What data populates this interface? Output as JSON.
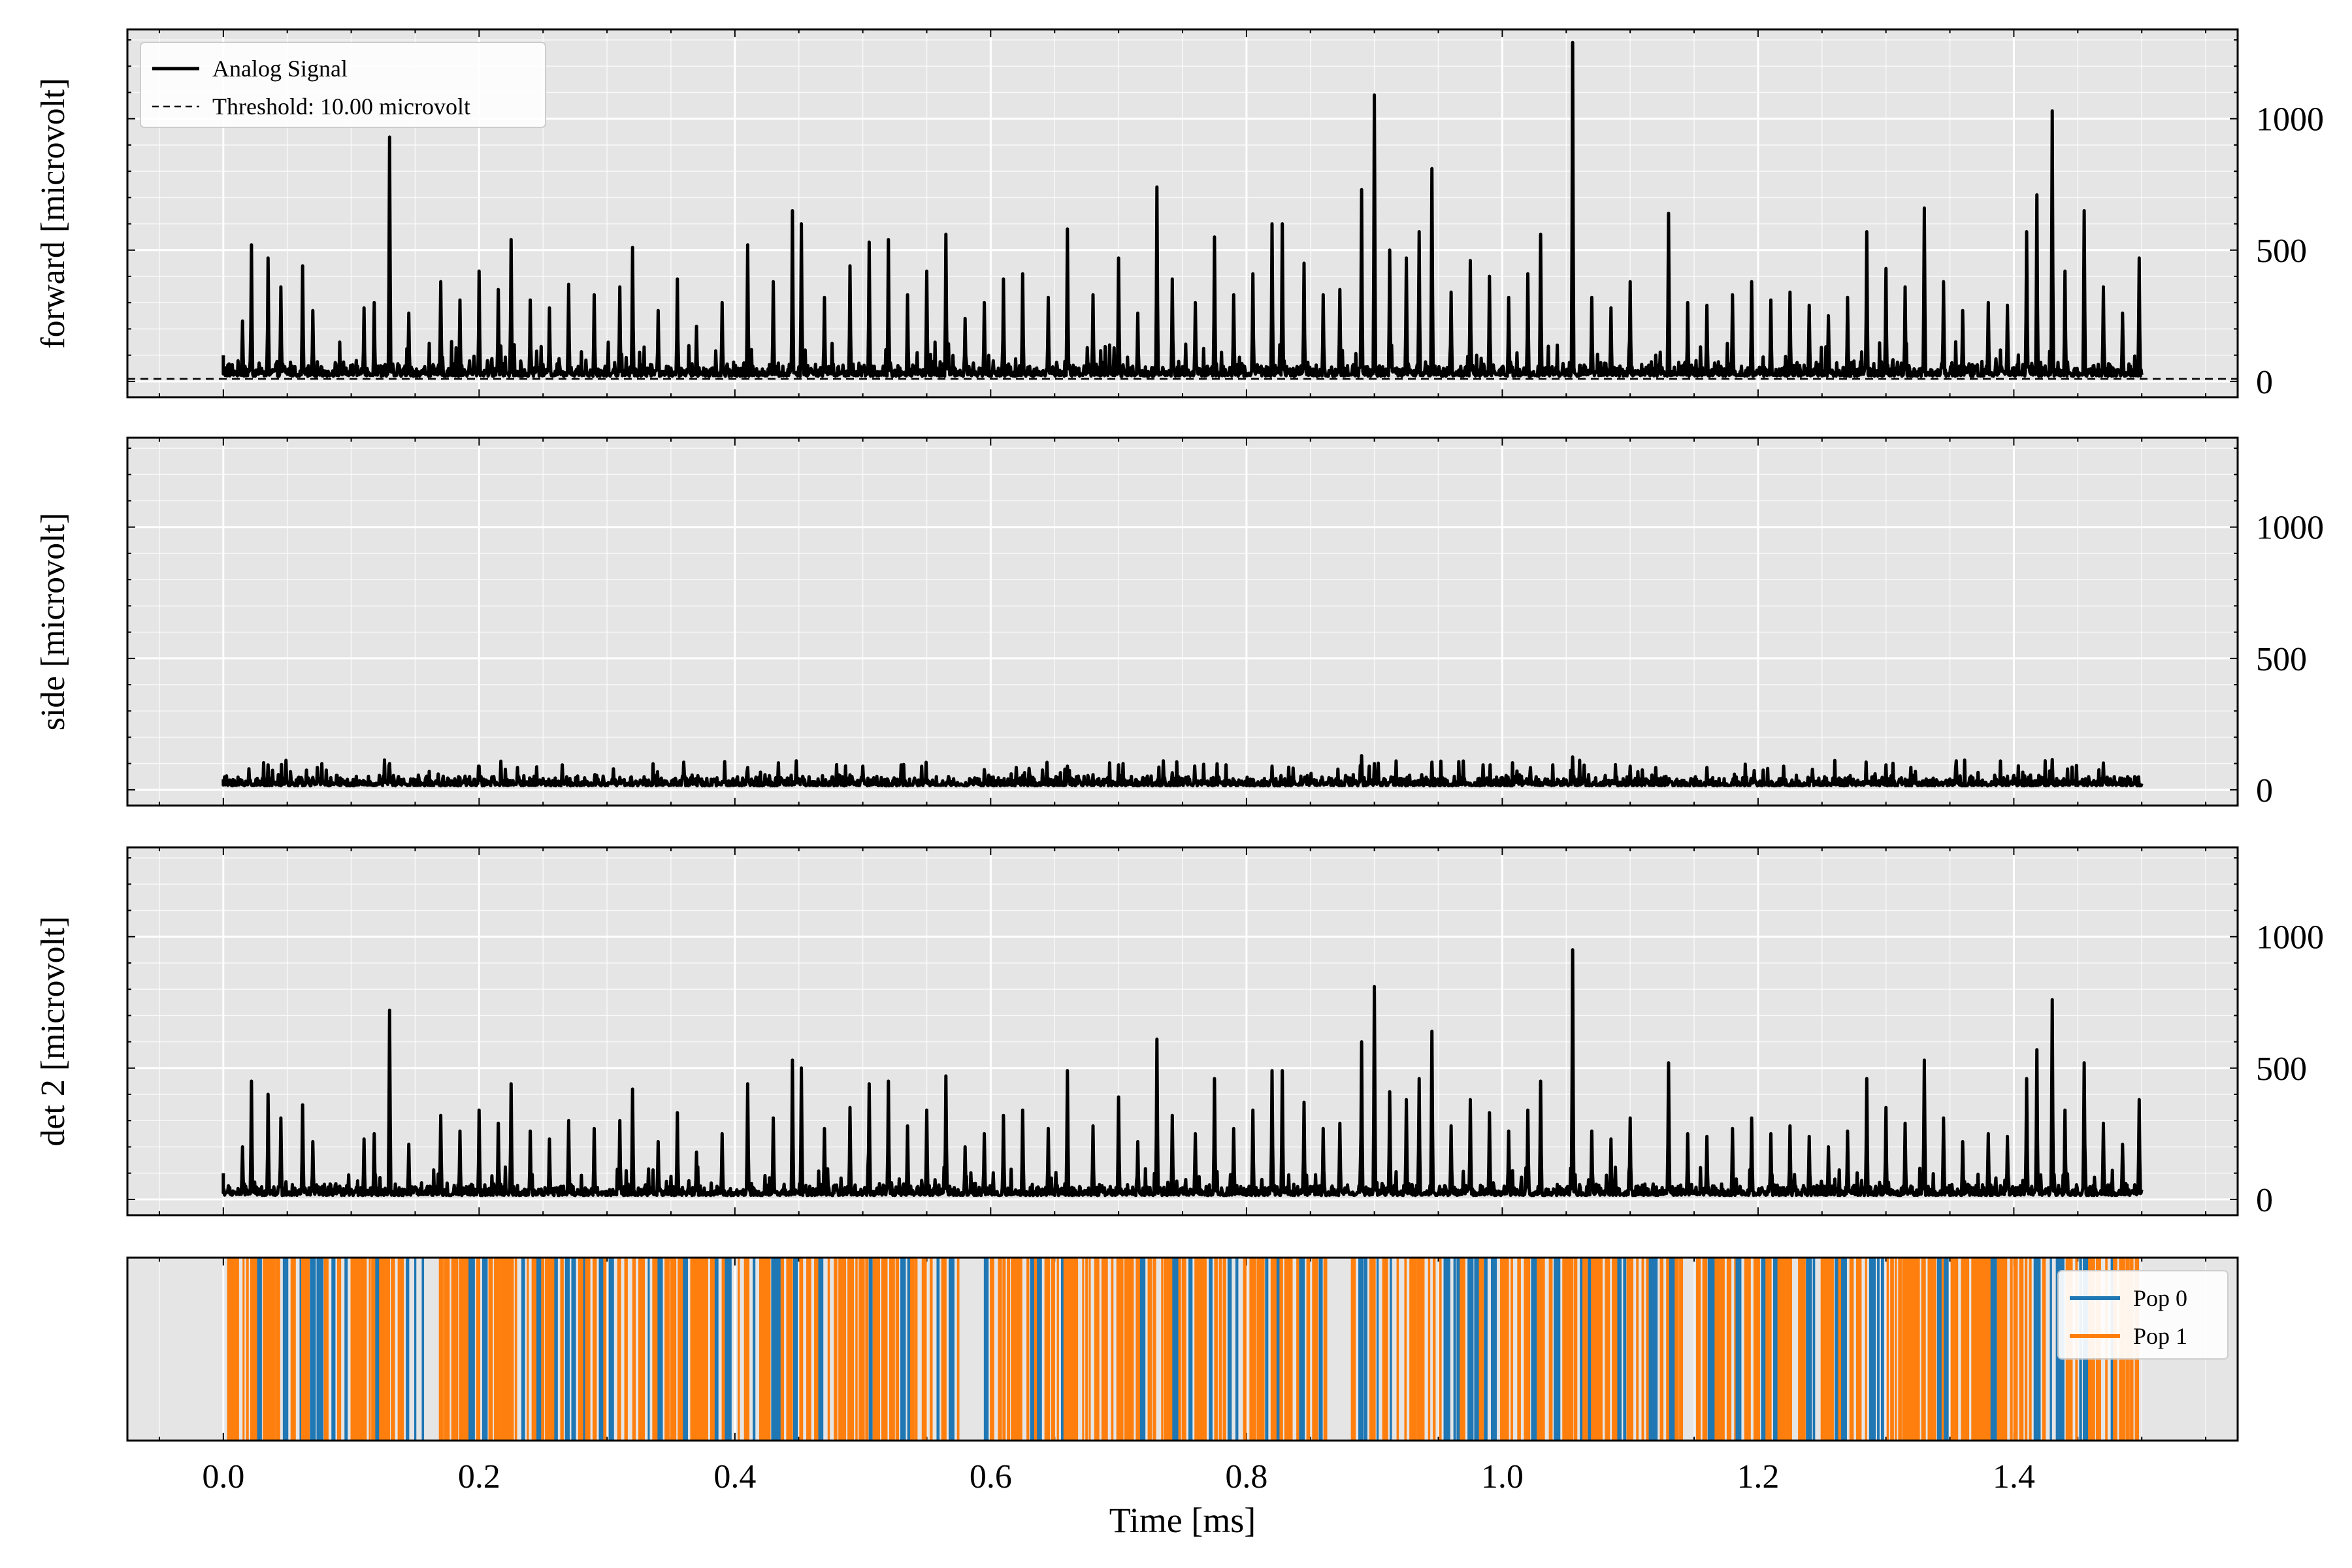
{
  "figure": {
    "xlabel": "Time [ms]",
    "x_ticks": [
      0.0,
      0.2,
      0.4,
      0.6,
      0.8,
      1.0,
      1.2,
      1.4
    ],
    "x_tick_labels": [
      "0.0",
      "0.2",
      "0.4",
      "0.6",
      "0.8",
      "1.0",
      "1.2",
      "1.4"
    ],
    "xlim": [
      -0.075,
      1.575
    ],
    "background_color": "#e5e5e5",
    "grid_color": "#ffffff",
    "signal_color": "#000000"
  },
  "chart_data": [
    {
      "type": "line",
      "panel": "forward",
      "ylabel": "forward [microvolt]",
      "ylim": [
        -60,
        1340
      ],
      "y_ticks": [
        0,
        500,
        1000
      ],
      "y_tick_labels": [
        "0",
        "500",
        "1000"
      ],
      "series": [
        {
          "name": "Analog Signal",
          "style": "solid",
          "color": "#000000"
        },
        {
          "name": "Threshold: 10.00 microvolt",
          "style": "dashed",
          "color": "#000000",
          "value": 10
        }
      ],
      "legend": {
        "placement": "upper-left",
        "entries": [
          "Analog Signal",
          "Threshold: 10.00 microvolt"
        ]
      },
      "baseline": 20,
      "noise_amplitude": 60,
      "peaks": [
        [
          0.015,
          230
        ],
        [
          0.022,
          520
        ],
        [
          0.035,
          470
        ],
        [
          0.045,
          360
        ],
        [
          0.062,
          440
        ],
        [
          0.07,
          270
        ],
        [
          0.11,
          280
        ],
        [
          0.118,
          300
        ],
        [
          0.13,
          930
        ],
        [
          0.145,
          260
        ],
        [
          0.17,
          380
        ],
        [
          0.185,
          310
        ],
        [
          0.2,
          420
        ],
        [
          0.215,
          350
        ],
        [
          0.225,
          540
        ],
        [
          0.24,
          310
        ],
        [
          0.255,
          280
        ],
        [
          0.27,
          370
        ],
        [
          0.29,
          330
        ],
        [
          0.31,
          360
        ],
        [
          0.32,
          510
        ],
        [
          0.34,
          270
        ],
        [
          0.355,
          390
        ],
        [
          0.37,
          210
        ],
        [
          0.39,
          300
        ],
        [
          0.41,
          520
        ],
        [
          0.43,
          380
        ],
        [
          0.445,
          650
        ],
        [
          0.452,
          600
        ],
        [
          0.47,
          320
        ],
        [
          0.49,
          440
        ],
        [
          0.505,
          530
        ],
        [
          0.52,
          540
        ],
        [
          0.535,
          330
        ],
        [
          0.55,
          420
        ],
        [
          0.565,
          560
        ],
        [
          0.58,
          240
        ],
        [
          0.595,
          300
        ],
        [
          0.61,
          390
        ],
        [
          0.625,
          410
        ],
        [
          0.645,
          320
        ],
        [
          0.66,
          580
        ],
        [
          0.68,
          330
        ],
        [
          0.7,
          470
        ],
        [
          0.715,
          260
        ],
        [
          0.73,
          740
        ],
        [
          0.742,
          390
        ],
        [
          0.76,
          300
        ],
        [
          0.775,
          550
        ],
        [
          0.79,
          330
        ],
        [
          0.805,
          410
        ],
        [
          0.82,
          600
        ],
        [
          0.828,
          600
        ],
        [
          0.845,
          450
        ],
        [
          0.86,
          330
        ],
        [
          0.873,
          350
        ],
        [
          0.89,
          730
        ],
        [
          0.9,
          1090
        ],
        [
          0.912,
          500
        ],
        [
          0.925,
          470
        ],
        [
          0.935,
          570
        ],
        [
          0.945,
          810
        ],
        [
          0.96,
          340
        ],
        [
          0.975,
          460
        ],
        [
          0.99,
          400
        ],
        [
          1.005,
          320
        ],
        [
          1.02,
          410
        ],
        [
          1.03,
          560
        ],
        [
          1.055,
          1290
        ],
        [
          1.07,
          320
        ],
        [
          1.085,
          280
        ],
        [
          1.1,
          380
        ],
        [
          1.13,
          640
        ],
        [
          1.145,
          300
        ],
        [
          1.16,
          290
        ],
        [
          1.18,
          330
        ],
        [
          1.195,
          380
        ],
        [
          1.21,
          310
        ],
        [
          1.225,
          340
        ],
        [
          1.24,
          290
        ],
        [
          1.255,
          250
        ],
        [
          1.27,
          320
        ],
        [
          1.285,
          570
        ],
        [
          1.3,
          430
        ],
        [
          1.315,
          360
        ],
        [
          1.33,
          660
        ],
        [
          1.345,
          380
        ],
        [
          1.36,
          270
        ],
        [
          1.38,
          300
        ],
        [
          1.395,
          290
        ],
        [
          1.41,
          570
        ],
        [
          1.418,
          710
        ],
        [
          1.43,
          1030
        ],
        [
          1.44,
          420
        ],
        [
          1.455,
          650
        ],
        [
          1.47,
          360
        ],
        [
          1.485,
          260
        ],
        [
          1.498,
          470
        ]
      ]
    },
    {
      "type": "line",
      "panel": "side",
      "ylabel": "side [microvolt]",
      "ylim": [
        -60,
        1340
      ],
      "y_ticks": [
        0,
        500,
        1000
      ],
      "y_tick_labels": [
        "0",
        "500",
        "1000"
      ],
      "series": [
        {
          "name": "",
          "style": "solid",
          "color": "#000000"
        }
      ],
      "baseline": 15,
      "noise_amplitude": 45,
      "peaks": [
        [
          0.02,
          80
        ],
        [
          0.035,
          95
        ],
        [
          0.065,
          75
        ],
        [
          0.13,
          100
        ],
        [
          0.2,
          90
        ],
        [
          0.23,
          85
        ],
        [
          0.265,
          95
        ],
        [
          0.305,
          80
        ],
        [
          0.36,
          105
        ],
        [
          0.41,
          85
        ],
        [
          0.448,
          110
        ],
        [
          0.5,
          90
        ],
        [
          0.53,
          95
        ],
        [
          0.62,
          85
        ],
        [
          0.66,
          90
        ],
        [
          0.7,
          95
        ],
        [
          0.735,
          110
        ],
        [
          0.82,
          90
        ],
        [
          0.89,
          130
        ],
        [
          0.9,
          100
        ],
        [
          0.945,
          105
        ],
        [
          0.985,
          95
        ],
        [
          1.055,
          125
        ],
        [
          1.1,
          90
        ],
        [
          1.16,
          85
        ],
        [
          1.22,
          90
        ],
        [
          1.3,
          95
        ],
        [
          1.355,
          110
        ],
        [
          1.43,
          115
        ],
        [
          1.47,
          100
        ]
      ]
    },
    {
      "type": "line",
      "panel": "det 2",
      "ylabel": "det 2 [microvolt]",
      "ylim": [
        -60,
        1340
      ],
      "y_ticks": [
        0,
        500,
        1000
      ],
      "y_tick_labels": [
        "0",
        "500",
        "1000"
      ],
      "series": [
        {
          "name": "",
          "style": "solid",
          "color": "#000000"
        }
      ],
      "baseline": 15,
      "noise_amplitude": 50,
      "peaks": [
        [
          0.015,
          200
        ],
        [
          0.022,
          450
        ],
        [
          0.035,
          400
        ],
        [
          0.045,
          310
        ],
        [
          0.062,
          360
        ],
        [
          0.07,
          220
        ],
        [
          0.11,
          230
        ],
        [
          0.118,
          250
        ],
        [
          0.13,
          720
        ],
        [
          0.145,
          210
        ],
        [
          0.17,
          320
        ],
        [
          0.185,
          260
        ],
        [
          0.2,
          340
        ],
        [
          0.215,
          290
        ],
        [
          0.225,
          440
        ],
        [
          0.24,
          260
        ],
        [
          0.255,
          230
        ],
        [
          0.27,
          300
        ],
        [
          0.29,
          270
        ],
        [
          0.31,
          300
        ],
        [
          0.32,
          420
        ],
        [
          0.34,
          220
        ],
        [
          0.355,
          330
        ],
        [
          0.37,
          180
        ],
        [
          0.39,
          250
        ],
        [
          0.41,
          440
        ],
        [
          0.43,
          310
        ],
        [
          0.445,
          530
        ],
        [
          0.452,
          500
        ],
        [
          0.47,
          270
        ],
        [
          0.49,
          350
        ],
        [
          0.505,
          440
        ],
        [
          0.52,
          450
        ],
        [
          0.535,
          280
        ],
        [
          0.55,
          340
        ],
        [
          0.565,
          470
        ],
        [
          0.58,
          200
        ],
        [
          0.595,
          250
        ],
        [
          0.61,
          320
        ],
        [
          0.625,
          340
        ],
        [
          0.645,
          270
        ],
        [
          0.66,
          490
        ],
        [
          0.68,
          280
        ],
        [
          0.7,
          390
        ],
        [
          0.715,
          220
        ],
        [
          0.73,
          610
        ],
        [
          0.742,
          320
        ],
        [
          0.76,
          250
        ],
        [
          0.775,
          460
        ],
        [
          0.79,
          270
        ],
        [
          0.805,
          340
        ],
        [
          0.82,
          490
        ],
        [
          0.828,
          490
        ],
        [
          0.845,
          370
        ],
        [
          0.86,
          270
        ],
        [
          0.873,
          290
        ],
        [
          0.89,
          600
        ],
        [
          0.9,
          810
        ],
        [
          0.912,
          410
        ],
        [
          0.925,
          380
        ],
        [
          0.935,
          460
        ],
        [
          0.945,
          640
        ],
        [
          0.96,
          280
        ],
        [
          0.975,
          380
        ],
        [
          0.99,
          330
        ],
        [
          1.005,
          260
        ],
        [
          1.02,
          340
        ],
        [
          1.03,
          450
        ],
        [
          1.055,
          950
        ],
        [
          1.07,
          260
        ],
        [
          1.085,
          230
        ],
        [
          1.1,
          310
        ],
        [
          1.13,
          520
        ],
        [
          1.145,
          250
        ],
        [
          1.16,
          240
        ],
        [
          1.18,
          270
        ],
        [
          1.195,
          310
        ],
        [
          1.21,
          250
        ],
        [
          1.225,
          280
        ],
        [
          1.24,
          240
        ],
        [
          1.255,
          200
        ],
        [
          1.27,
          260
        ],
        [
          1.285,
          460
        ],
        [
          1.3,
          350
        ],
        [
          1.315,
          290
        ],
        [
          1.33,
          530
        ],
        [
          1.345,
          310
        ],
        [
          1.36,
          220
        ],
        [
          1.38,
          250
        ],
        [
          1.395,
          240
        ],
        [
          1.41,
          460
        ],
        [
          1.418,
          570
        ],
        [
          1.43,
          760
        ],
        [
          1.44,
          340
        ],
        [
          1.455,
          520
        ],
        [
          1.47,
          290
        ],
        [
          1.485,
          210
        ],
        [
          1.498,
          380
        ]
      ]
    },
    {
      "type": "event_raster",
      "panel": "populations",
      "ylabel": "",
      "series": [
        {
          "name": "Pop 0",
          "color": "#1f77b4"
        },
        {
          "name": "Pop 1",
          "color": "#ff7f0e"
        }
      ],
      "legend": {
        "placement": "upper-right",
        "entries": [
          "Pop 0",
          "Pop 1"
        ]
      },
      "x_range": [
        0.005,
        1.5
      ],
      "gaps": [
        [
          0.16,
          0.17
        ],
        [
          0.395,
          0.4
        ],
        [
          0.575,
          0.595
        ],
        [
          0.865,
          0.88
        ],
        [
          1.14,
          1.15
        ],
        [
          1.225,
          1.23
        ]
      ],
      "pop0_fraction": 0.3,
      "event_spacing": 0.0042
    }
  ]
}
